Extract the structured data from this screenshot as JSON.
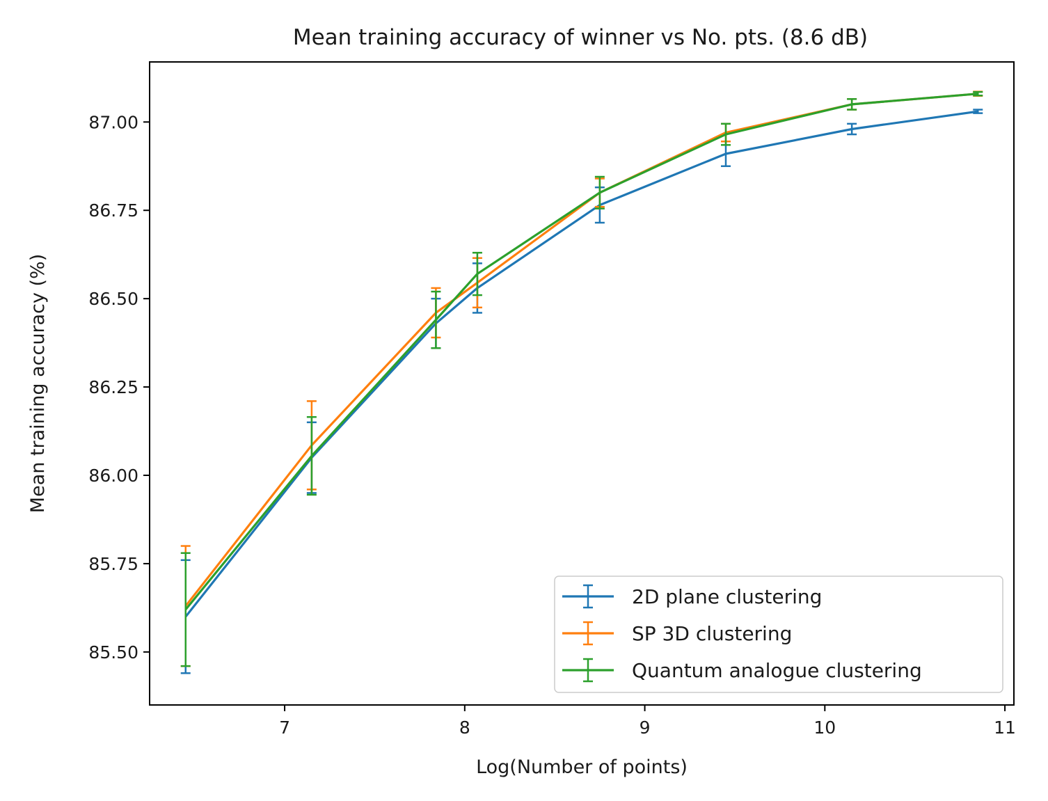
{
  "chart_data": {
    "type": "line",
    "title": "Mean training accuracy of winner vs No. pts. (8.6 dB)",
    "xlabel": "Log(Number of points)",
    "ylabel": "Mean training accuracy (%)",
    "xlim": [
      6.25,
      11.05
    ],
    "ylim": [
      85.35,
      87.17
    ],
    "xticks": [
      7,
      8,
      9,
      10,
      11
    ],
    "yticks": [
      85.5,
      85.75,
      86.0,
      86.25,
      86.5,
      86.75,
      87.0
    ],
    "xtick_labels": [
      "7",
      "8",
      "9",
      "10",
      "11"
    ],
    "ytick_labels": [
      "85.50",
      "85.75",
      "86.00",
      "86.25",
      "86.50",
      "86.75",
      "87.00"
    ],
    "grid": false,
    "legend_position": "lower-right",
    "x": [
      6.45,
      7.15,
      7.84,
      8.07,
      8.75,
      9.45,
      10.15,
      10.85
    ],
    "series": [
      {
        "name": "2D plane clustering",
        "color": "#1f77b4",
        "values": [
          85.6,
          86.05,
          86.43,
          86.53,
          86.765,
          86.91,
          86.98,
          87.03
        ],
        "errors": [
          0.16,
          0.1,
          0.07,
          0.07,
          0.05,
          0.035,
          0.015,
          0.005
        ]
      },
      {
        "name": "SP 3D clustering",
        "color": "#ff7f0e",
        "values": [
          85.63,
          86.085,
          86.46,
          86.545,
          86.8,
          86.97,
          87.05,
          87.08
        ],
        "errors": [
          0.17,
          0.125,
          0.07,
          0.07,
          0.04,
          0.025,
          0.015,
          0.006
        ]
      },
      {
        "name": "Quantum analogue clustering",
        "color": "#2ca02c",
        "values": [
          85.62,
          86.055,
          86.44,
          86.57,
          86.8,
          86.965,
          87.05,
          87.08
        ],
        "errors": [
          0.16,
          0.11,
          0.08,
          0.06,
          0.045,
          0.03,
          0.015,
          0.005
        ]
      }
    ]
  }
}
